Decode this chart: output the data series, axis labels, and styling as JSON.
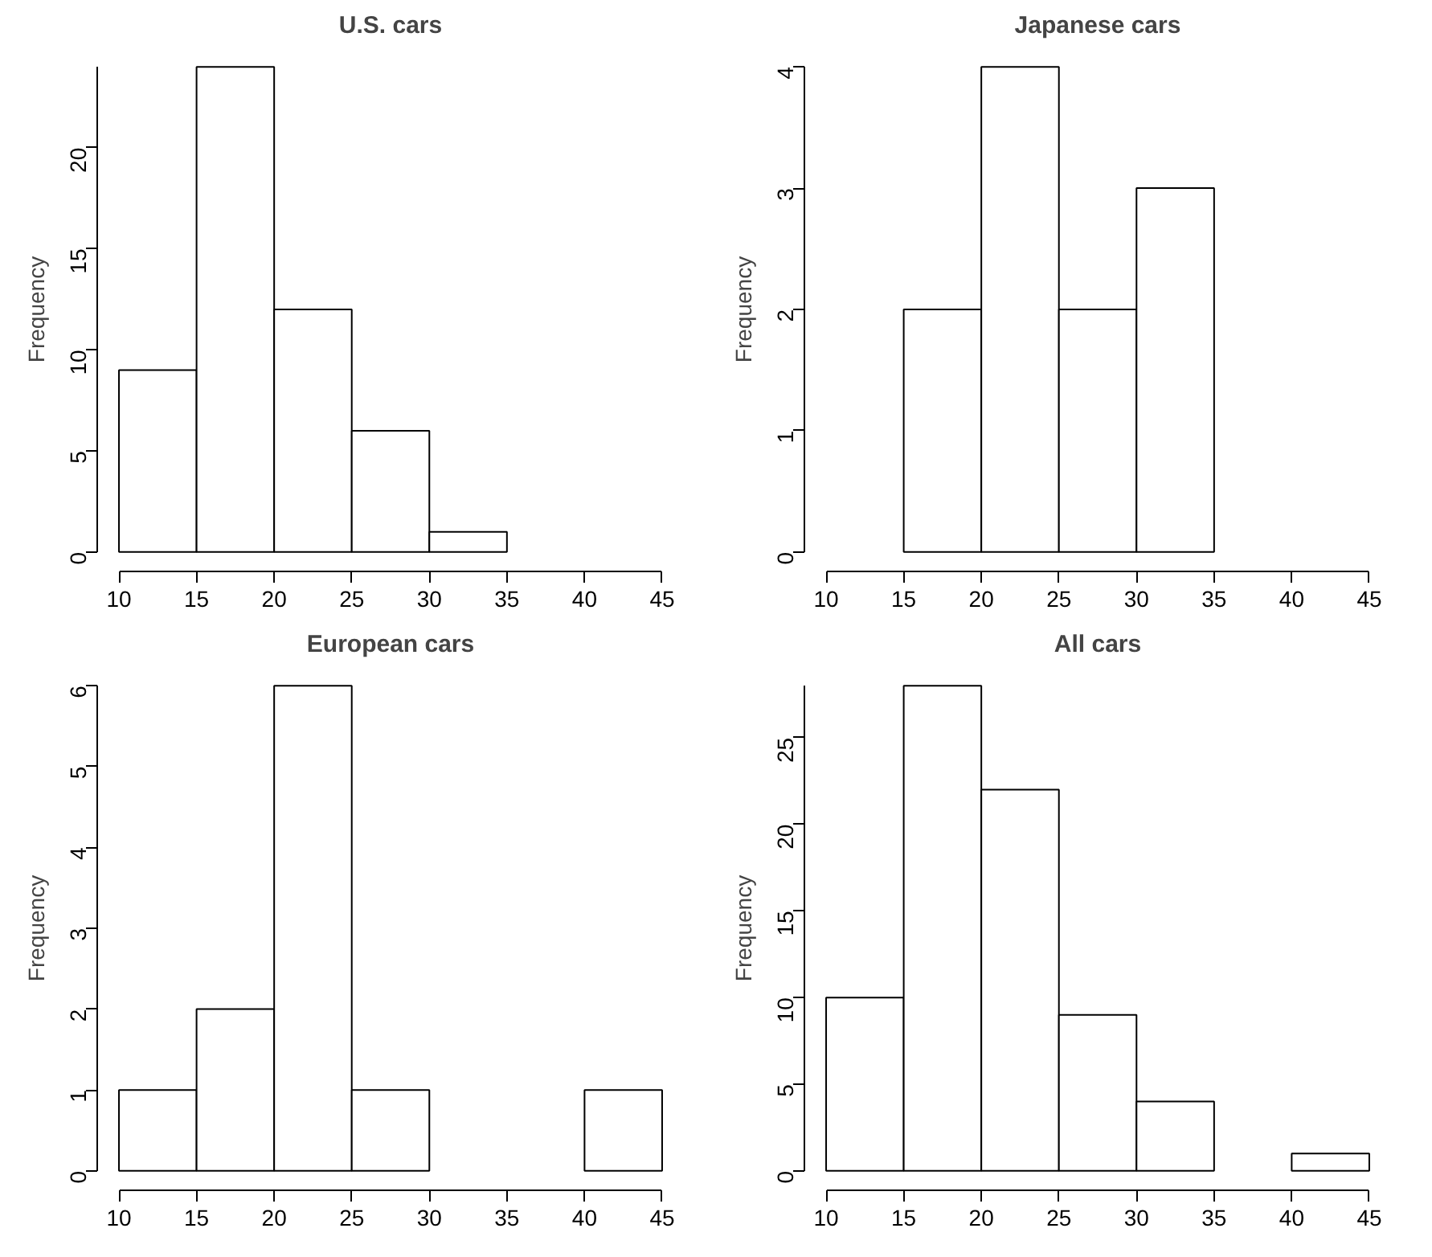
{
  "chart_data": [
    {
      "type": "histogram",
      "title": "U.S. cars",
      "ylabel": "Frequency",
      "bins": [
        10,
        15,
        20,
        25,
        30,
        35
      ],
      "values": [
        9,
        24,
        12,
        6,
        1
      ],
      "color": "#ffffff",
      "xlim": [
        10,
        45
      ],
      "xticks": [
        10,
        15,
        20,
        25,
        30,
        35,
        40,
        45
      ],
      "ylim": [
        0,
        24
      ],
      "yticks": [
        0,
        5,
        10,
        15,
        20
      ],
      "grid": false
    },
    {
      "type": "histogram",
      "title": "Japanese cars",
      "ylabel": "Frequency",
      "bins": [
        15,
        20,
        25,
        30,
        35
      ],
      "values": [
        2,
        4,
        2,
        3
      ],
      "color": "#ffffff",
      "xlim": [
        10,
        45
      ],
      "xticks": [
        10,
        15,
        20,
        25,
        30,
        35,
        40,
        45
      ],
      "ylim": [
        0,
        4
      ],
      "yticks": [
        0,
        1,
        2,
        3,
        4
      ],
      "grid": false
    },
    {
      "type": "histogram",
      "title": "European cars",
      "ylabel": "Frequency",
      "bins": [
        10,
        15,
        20,
        25,
        30,
        35,
        40,
        45
      ],
      "values": [
        1,
        2,
        6,
        1,
        0,
        0,
        1
      ],
      "color": "#ffffff",
      "xlim": [
        10,
        45
      ],
      "xticks": [
        10,
        15,
        20,
        25,
        30,
        35,
        40,
        45
      ],
      "ylim": [
        0,
        6
      ],
      "yticks": [
        0,
        1,
        2,
        3,
        4,
        5,
        6
      ],
      "grid": false
    },
    {
      "type": "histogram",
      "title": "All cars",
      "ylabel": "Frequency",
      "bins": [
        10,
        15,
        20,
        25,
        30,
        35,
        40,
        45
      ],
      "values": [
        10,
        28,
        22,
        9,
        4,
        0,
        1
      ],
      "color": "#ffffff",
      "xlim": [
        10,
        45
      ],
      "xticks": [
        10,
        15,
        20,
        25,
        30,
        35,
        40,
        45
      ],
      "ylim": [
        0,
        28
      ],
      "yticks": [
        0,
        5,
        10,
        15,
        20,
        25
      ],
      "grid": false
    }
  ]
}
